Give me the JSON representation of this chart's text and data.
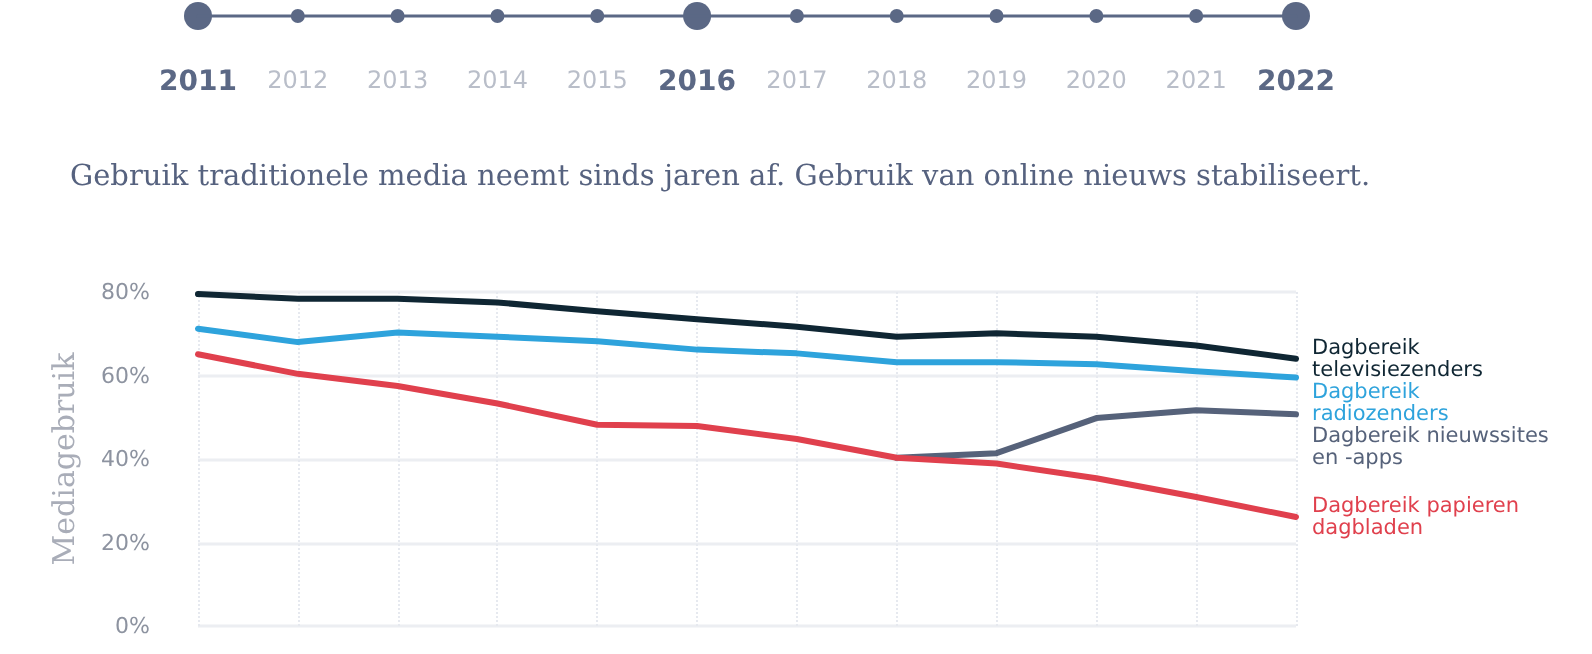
{
  "chart_data": {
    "type": "line",
    "title": "Gebruik traditionele media neemt sinds jaren af. Gebruik van online nieuws stabiliseert.",
    "ylabel": "Mediagebruik",
    "categories": [
      null,
      null,
      null,
      null,
      null,
      null,
      null,
      null,
      null,
      null,
      null,
      null
    ],
    "annotations": [
      "2011",
      "2012",
      "2013",
      "2014",
      "2015",
      "2016",
      "2017",
      "2018",
      "2019",
      "2020",
      "2021",
      "2022"
    ],
    "tick_labels": "y",
    "series": [
      {
        "name": "Dagbereik televisiezenders",
        "color": "#0f2633",
        "values": [
          79.5,
          78.4,
          78.4,
          77.5,
          75.4,
          73.5,
          71.7,
          69.3,
          70.1,
          69.3,
          67.2,
          64
        ]
      },
      {
        "name": "Dagbereik radiozenders",
        "color": "#2ea3dc",
        "values": [
          71.2,
          68,
          70.3,
          69.3,
          68.2,
          66.2,
          65.3,
          63.2,
          63.2,
          62.7,
          61,
          59.5
        ]
      },
      {
        "name": "Dagbereik nieuwssites en -apps",
        "color": "#56627a",
        "values": [
          null,
          null,
          null,
          null,
          null,
          null,
          null,
          40.3,
          41.4,
          49.8,
          51.7,
          50.7
        ]
      },
      {
        "name": "Dagbereik papieren dagbladen",
        "color": "#e0404d",
        "values": [
          65.1,
          60.4,
          57.5,
          53.3,
          48.2,
          47.9,
          44.8,
          40.3,
          38.9,
          35.4,
          30.9,
          26.1
        ]
      }
    ],
    "ylim": [
      0,
      80
    ],
    "yticks": [
      {
        "value": 0,
        "label": "0%"
      },
      {
        "value": 20,
        "label": "20%"
      },
      {
        "value": 40,
        "label": "40%"
      },
      {
        "value": 60,
        "label": "60%"
      },
      {
        "value": 80,
        "label": "80%"
      }
    ],
    "grid": true,
    "legend": false,
    "marker": "none",
    "line_style": "solid"
  }
}
